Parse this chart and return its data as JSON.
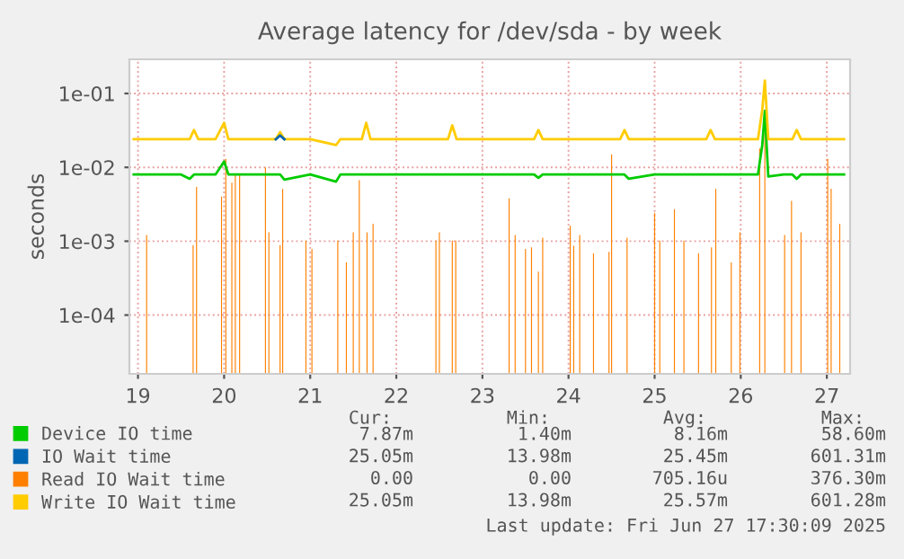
{
  "chart_data": {
    "type": "line",
    "title": "Average latency for /dev/sda - by week",
    "ylabel": "seconds",
    "x": [
      18.95,
      19.2,
      19.5,
      19.6,
      19.65,
      19.7,
      19.9,
      20.0,
      20.05,
      20.3,
      20.6,
      20.65,
      20.7,
      21.0,
      21.3,
      21.35,
      21.6,
      21.65,
      21.7,
      22.0,
      22.3,
      22.6,
      22.65,
      22.7,
      23.0,
      23.3,
      23.6,
      23.65,
      23.7,
      24.0,
      24.3,
      24.6,
      24.65,
      24.7,
      25.0,
      25.3,
      25.6,
      25.65,
      25.7,
      26.0,
      26.2,
      26.25,
      26.28,
      26.32,
      26.5,
      26.6,
      26.65,
      26.7,
      27.0,
      27.2
    ],
    "series": [
      {
        "name": "Device IO time",
        "color": "#00cc00",
        "values": [
          0.008,
          0.008,
          0.008,
          0.007,
          0.008,
          0.008,
          0.008,
          0.012,
          0.008,
          0.008,
          0.008,
          0.008,
          0.0068,
          0.008,
          0.0064,
          0.008,
          0.008,
          0.008,
          0.008,
          0.008,
          0.008,
          0.008,
          0.008,
          0.008,
          0.008,
          0.008,
          0.008,
          0.0072,
          0.008,
          0.008,
          0.008,
          0.008,
          0.008,
          0.007,
          0.008,
          0.008,
          0.008,
          0.008,
          0.008,
          0.008,
          0.008,
          0.02,
          0.058,
          0.0075,
          0.008,
          0.008,
          0.007,
          0.008,
          0.008,
          0.008
        ]
      },
      {
        "name": "IO Wait time",
        "color": "#0066b3",
        "values": [
          null,
          null,
          null,
          null,
          null,
          null,
          null,
          null,
          null,
          null,
          0.024,
          0.027,
          0.024,
          null,
          null,
          null,
          null,
          null,
          null,
          null,
          null,
          null,
          null,
          null,
          null,
          null,
          null,
          null,
          null,
          null,
          null,
          null,
          null,
          null,
          null,
          null,
          null,
          null,
          null,
          null,
          null,
          null,
          null,
          null,
          null,
          null,
          null,
          null,
          null,
          null
        ]
      },
      {
        "name": "Read IO Wait time",
        "color": "#ff8000",
        "type": "bar",
        "x": [
          19.1,
          19.64,
          19.68,
          19.97,
          20.02,
          20.09,
          20.13,
          20.18,
          20.48,
          20.52,
          20.65,
          20.68,
          20.95,
          21.02,
          21.32,
          21.42,
          21.5,
          21.57,
          21.66,
          21.73,
          22.46,
          22.5,
          22.65,
          22.69,
          23.31,
          23.38,
          23.5,
          23.57,
          23.65,
          23.7,
          24.02,
          24.06,
          24.13,
          24.29,
          24.47,
          24.5,
          24.68,
          25.0,
          25.06,
          25.23,
          25.34,
          25.51,
          25.66,
          25.71,
          25.89,
          25.99,
          26.22,
          26.28,
          26.51,
          26.59,
          26.7,
          27.01,
          27.05,
          27.15
        ],
        "values": [
          0.0012,
          0.00087,
          0.0054,
          0.004,
          0.013,
          0.0062,
          0.0078,
          0.0078,
          0.01,
          0.0013,
          0.00087,
          0.0051,
          0.001,
          0.00077,
          0.001,
          0.0005,
          0.0013,
          0.0067,
          0.0013,
          0.0017,
          0.001,
          0.0013,
          0.001,
          0.001,
          0.0038,
          0.0012,
          0.00077,
          0.00081,
          0.00037,
          0.0011,
          0.0016,
          0.00085,
          0.0012,
          0.00067,
          0.0007,
          0.015,
          0.0011,
          0.0024,
          0.001,
          0.0027,
          0.001,
          0.00067,
          0.00081,
          0.0051,
          0.0005,
          0.0013,
          0.018,
          0.03,
          0.0012,
          0.0035,
          0.0013,
          0.013,
          0.0051,
          0.0017
        ]
      },
      {
        "name": "Write IO Wait time",
        "color": "#ffcc00",
        "values": [
          0.024,
          0.024,
          0.024,
          0.024,
          0.032,
          0.024,
          0.024,
          0.04,
          0.024,
          0.024,
          0.024,
          0.03,
          0.024,
          0.024,
          0.02,
          0.024,
          0.024,
          0.04,
          0.024,
          0.024,
          0.024,
          0.024,
          0.037,
          0.024,
          0.024,
          0.024,
          0.024,
          0.032,
          0.024,
          0.024,
          0.024,
          0.024,
          0.032,
          0.024,
          0.024,
          0.024,
          0.024,
          0.032,
          0.024,
          0.024,
          0.024,
          0.06,
          0.15,
          0.024,
          0.024,
          0.024,
          0.032,
          0.024,
          0.024,
          0.024
        ]
      }
    ],
    "log": "y",
    "ylim": [
      1.6e-05,
      0.29
    ],
    "yticks": [
      {
        "value": 0.0001,
        "label": "1e-04"
      },
      {
        "value": 0.001,
        "label": "1e-03"
      },
      {
        "value": 0.01,
        "label": "1e-02"
      },
      {
        "value": 0.1,
        "label": "1e-01"
      }
    ],
    "xlim": [
      18.9,
      27.27
    ],
    "xticks": [
      19,
      20,
      21,
      22,
      23,
      24,
      25,
      26,
      27
    ],
    "grid": true,
    "legend": "bottom",
    "line_style": "solid",
    "marker": "none",
    "annotations": [
      "Cur:",
      "Min:",
      "Avg:",
      "Max:",
      "7.87m",
      "1.40m",
      "8.16m",
      "58.60m",
      "25.05m",
      "13.98m",
      "25.45m",
      "601.31m",
      "0.00",
      "0.00",
      "705.16u",
      "376.30m",
      "25.05m",
      "13.98m",
      "25.57m",
      "601.28m",
      "Last update: Fri Jun 27 17:30:09 2025"
    ]
  }
}
